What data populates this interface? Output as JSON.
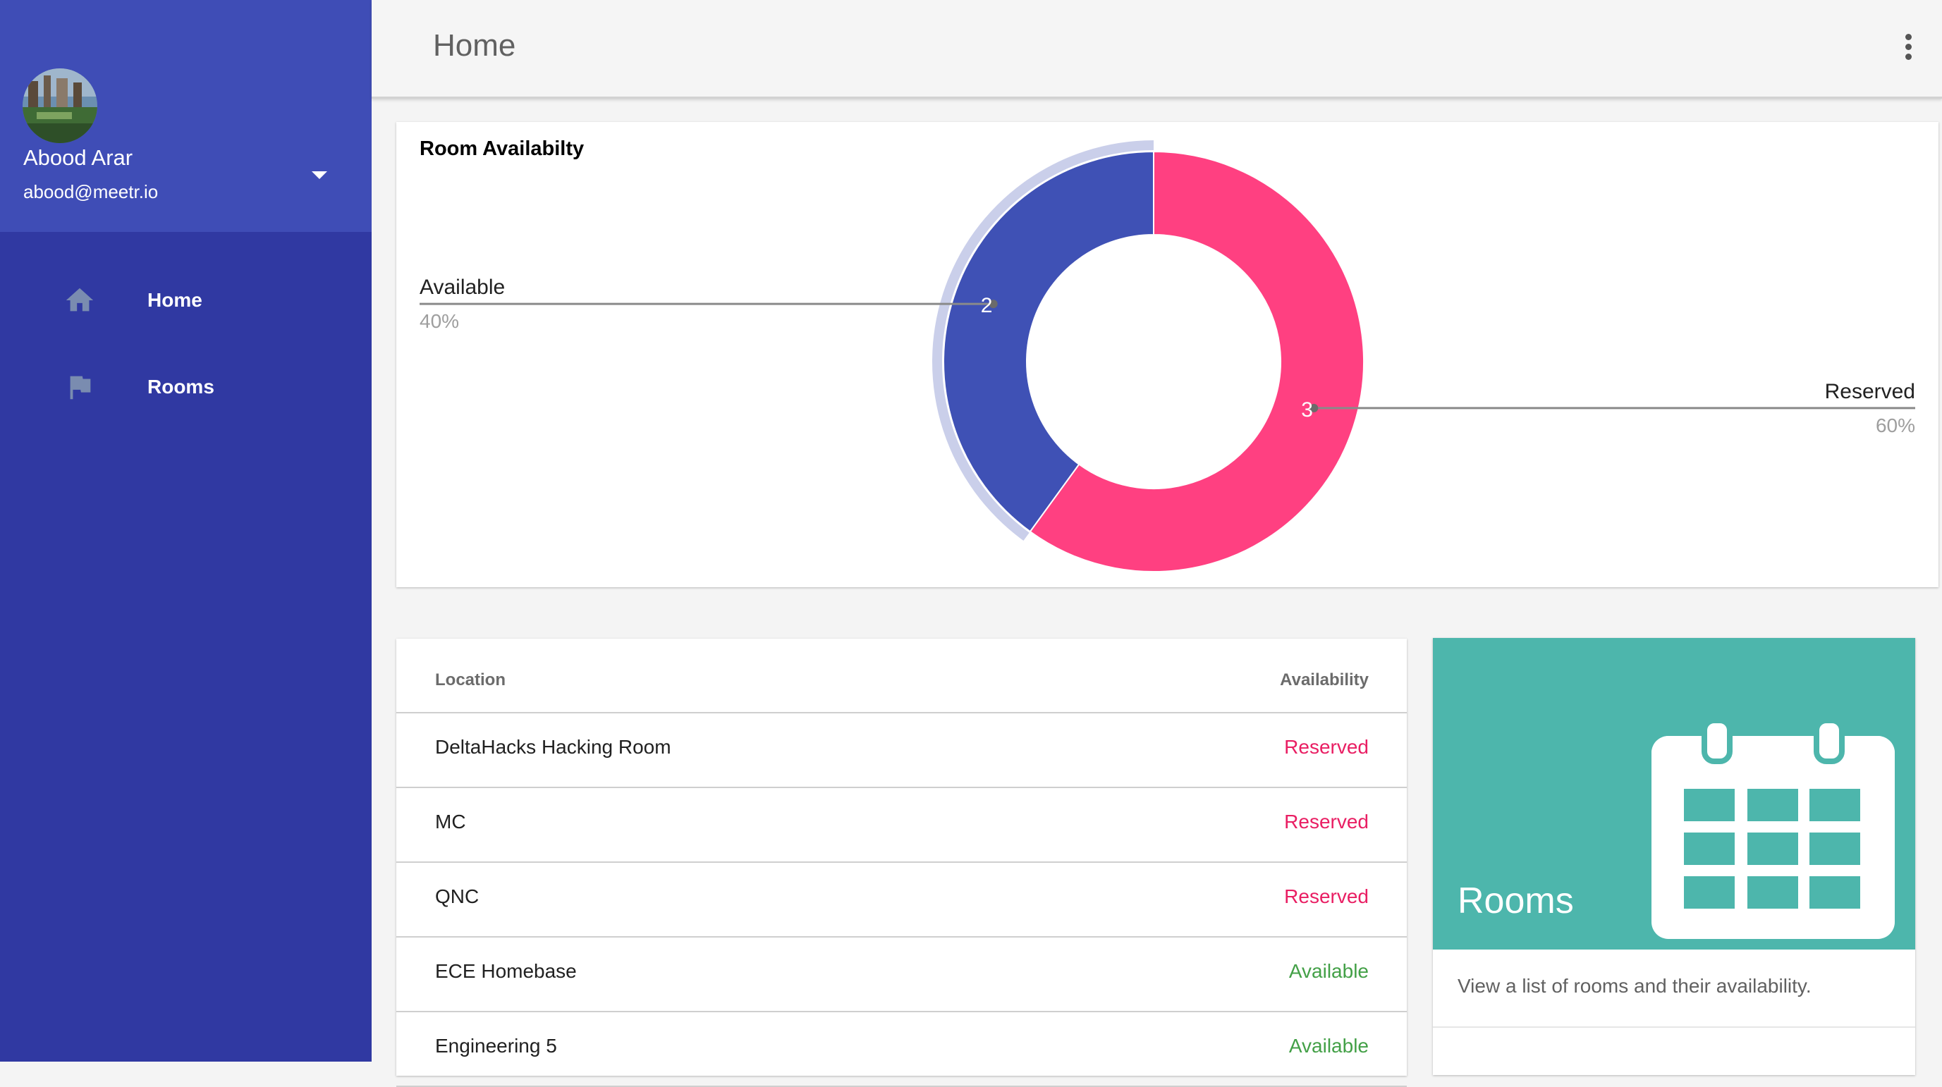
{
  "user": {
    "name": "Abood Arar",
    "email": "abood@meetr.io"
  },
  "nav": {
    "items": [
      {
        "label": "Home",
        "icon": "home-icon"
      },
      {
        "label": "Rooms",
        "icon": "flag-icon"
      }
    ]
  },
  "header": {
    "title": "Home"
  },
  "colors": {
    "sidebar": "#3039a2",
    "profile": "#3f4db6",
    "available": "#3f51b5",
    "reserved": "#ff4081",
    "teal": "#4db6ac",
    "available_text": "#43a047",
    "reserved_text": "#e91e63"
  },
  "chart_data": {
    "type": "pie",
    "title": "Room Availabilty",
    "donut": true,
    "categories": [
      "Available",
      "Reserved"
    ],
    "values": [
      2,
      3
    ],
    "percent_labels": [
      "40%",
      "60%"
    ],
    "colors": [
      "#3f51b5",
      "#ff4081"
    ],
    "highlighted": "Available"
  },
  "table": {
    "headers": {
      "location": "Location",
      "availability": "Availability"
    },
    "rows": [
      {
        "location": "DeltaHacks Hacking Room",
        "availability": "Reserved"
      },
      {
        "location": "MC",
        "availability": "Reserved"
      },
      {
        "location": "QNC",
        "availability": "Reserved"
      },
      {
        "location": "ECE Homebase",
        "availability": "Available"
      },
      {
        "location": "Engineering 5",
        "availability": "Available"
      }
    ]
  },
  "rooms_card": {
    "title": "Rooms",
    "description": "View a list of rooms and their availability.",
    "icon": "calendar-icon"
  }
}
